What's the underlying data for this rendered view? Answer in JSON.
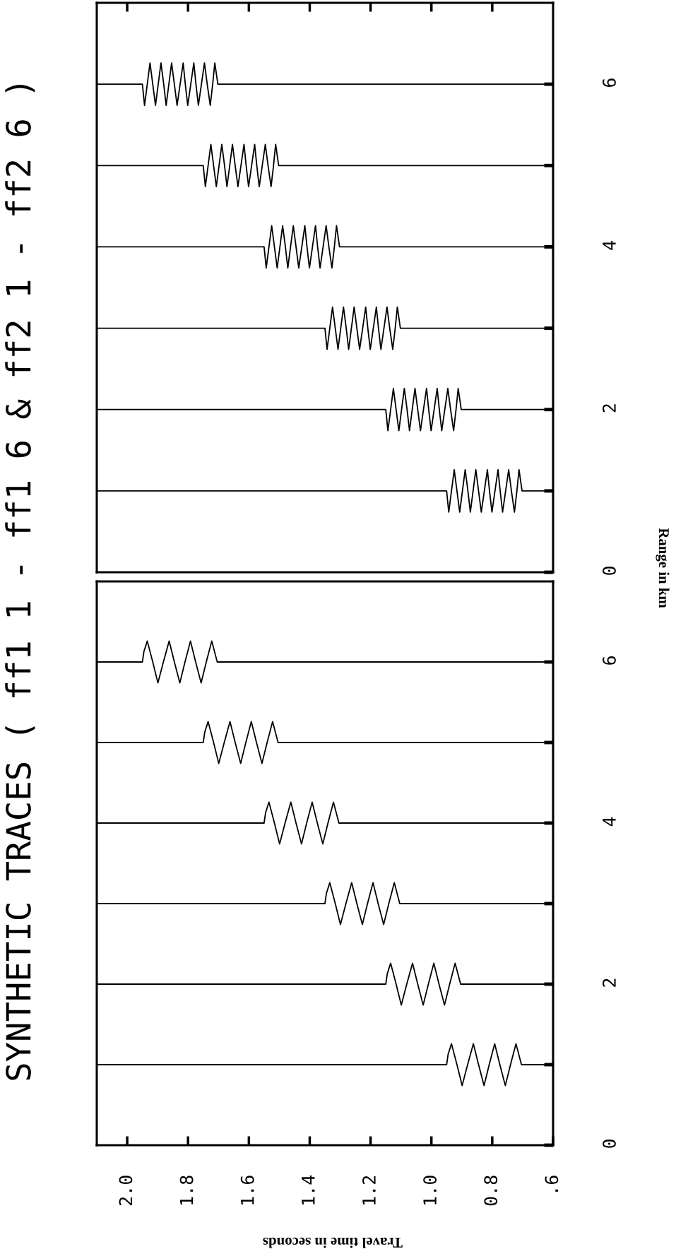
{
  "chart_data": [
    {
      "type": "line",
      "title": "SYNTHETIC TRACES ( ff1 1 - ff1 6 & ff2 1 - ff2 6 )",
      "xlabel": "Travel time in seconds",
      "ylabel": "Range in km",
      "grid": false,
      "legend": false,
      "marker": "none",
      "line_style": "solid",
      "xlim": [
        2.1,
        0.6
      ],
      "xticks": [
        {
          "value": 2.0,
          "label": "2.0"
        },
        1.8,
        1.6,
        1.4,
        1.2,
        {
          "value": 1.0,
          "label": "1.0"
        },
        0.8,
        {
          "value": 0.6,
          "label": ".6"
        }
      ],
      "ylim": [
        0,
        7
      ],
      "yticks": [
        0,
        {
          "value": 1,
          "label": null
        },
        2,
        {
          "value": 3,
          "label": null
        },
        4,
        {
          "value": 5,
          "label": null
        },
        6
      ],
      "series": [
        {
          "color": "#000000",
          "x": [
            2.1,
            1.95,
            1.945,
            1.934,
            1.916,
            1.899,
            1.881,
            1.862,
            1.845,
            1.827,
            1.81,
            1.792,
            1.775,
            1.757,
            1.74,
            1.722,
            1.704,
            0.6
          ],
          "values": [
            6,
            6,
            6.13,
            6.26,
            6,
            5.74,
            6,
            6.26,
            6,
            5.74,
            6,
            6.26,
            6,
            5.74,
            6,
            6.26,
            6,
            6
          ]
        },
        {
          "color": "#000000",
          "x": [
            2.1,
            1.75,
            1.745,
            1.734,
            1.716,
            1.699,
            1.681,
            1.662,
            1.645,
            1.627,
            1.61,
            1.592,
            1.575,
            1.557,
            1.54,
            1.522,
            1.504,
            0.6
          ],
          "values": [
            5,
            5,
            5.13,
            5.26,
            5,
            4.74,
            5,
            5.26,
            5,
            4.74,
            5,
            5.26,
            5,
            4.74,
            5,
            5.26,
            5,
            5
          ]
        },
        {
          "color": "#000000",
          "x": [
            2.1,
            1.55,
            1.545,
            1.534,
            1.516,
            1.499,
            1.481,
            1.462,
            1.445,
            1.427,
            1.41,
            1.392,
            1.375,
            1.357,
            1.34,
            1.322,
            1.304,
            0.6
          ],
          "values": [
            4,
            4,
            4.13,
            4.26,
            4,
            3.74,
            4,
            4.26,
            4,
            3.74,
            4,
            4.26,
            4,
            3.74,
            4,
            4.26,
            4,
            4
          ]
        },
        {
          "color": "#000000",
          "x": [
            2.1,
            1.35,
            1.345,
            1.334,
            1.316,
            1.299,
            1.281,
            1.262,
            1.245,
            1.227,
            1.21,
            1.192,
            1.175,
            1.157,
            1.14,
            1.122,
            1.104,
            0.6
          ],
          "values": [
            3,
            3,
            3.13,
            3.26,
            3,
            2.74,
            3,
            3.26,
            3,
            2.74,
            3,
            3.26,
            3,
            2.74,
            3,
            3.26,
            3,
            3
          ]
        },
        {
          "color": "#000000",
          "x": [
            2.1,
            1.15,
            1.145,
            1.134,
            1.116,
            1.099,
            1.081,
            1.062,
            1.045,
            1.027,
            1.01,
            0.992,
            0.975,
            0.957,
            0.94,
            0.922,
            0.904,
            0.6
          ],
          "values": [
            2,
            2,
            2.13,
            2.26,
            2,
            1.74,
            2,
            2.26,
            2,
            1.74,
            2,
            2.26,
            2,
            1.74,
            2,
            2.26,
            2,
            2
          ]
        },
        {
          "color": "#000000",
          "x": [
            2.1,
            0.95,
            0.945,
            0.934,
            0.916,
            0.899,
            0.881,
            0.862,
            0.845,
            0.827,
            0.81,
            0.792,
            0.775,
            0.757,
            0.74,
            0.722,
            0.704,
            0.6
          ],
          "values": [
            1,
            1,
            1.13,
            1.26,
            1,
            0.74,
            1,
            1.26,
            1,
            0.74,
            1,
            1.26,
            1,
            0.74,
            1,
            1.26,
            1,
            1
          ]
        }
      ]
    },
    {
      "type": "line",
      "tick_labels": "y",
      "grid": false,
      "legend": false,
      "marker": "none",
      "line_style": "solid",
      "xlim": [
        2.1,
        0.6
      ],
      "xticks": [
        2.0,
        1.8,
        1.6,
        1.4,
        1.2,
        1.0,
        0.8
      ],
      "ylim": [
        0,
        7
      ],
      "yticks": [
        0,
        {
          "value": 1,
          "label": null
        },
        2,
        {
          "value": 3,
          "label": null
        },
        4,
        {
          "value": 5,
          "label": null
        },
        6
      ],
      "series": [
        {
          "color": "#000000",
          "x": [
            2.1,
            1.95,
            1.943,
            1.934,
            1.925,
            1.916,
            1.907,
            1.898,
            1.889,
            1.88,
            1.872,
            1.863,
            1.854,
            1.845,
            1.836,
            1.826,
            1.816,
            1.809,
            1.801,
            1.791,
            1.781,
            1.774,
            1.766,
            1.756,
            1.746,
            1.737,
            1.727,
            1.719,
            1.712,
            1.702,
            0.6
          ],
          "values": [
            6,
            6,
            5.74,
            6,
            6.26,
            6,
            5.74,
            6,
            6.26,
            6,
            5.74,
            6,
            6.26,
            6,
            5.74,
            6,
            6.26,
            6,
            5.74,
            6,
            6.26,
            6,
            5.74,
            6,
            6.26,
            6,
            5.74,
            6,
            6.26,
            6,
            6
          ]
        },
        {
          "color": "#000000",
          "x": [
            2.1,
            1.75,
            1.743,
            1.734,
            1.725,
            1.716,
            1.707,
            1.698,
            1.689,
            1.68,
            1.672,
            1.663,
            1.654,
            1.645,
            1.636,
            1.626,
            1.616,
            1.609,
            1.601,
            1.591,
            1.581,
            1.574,
            1.566,
            1.556,
            1.546,
            1.537,
            1.527,
            1.519,
            1.512,
            1.502,
            0.6
          ],
          "values": [
            5,
            5,
            4.74,
            5,
            5.26,
            5,
            4.74,
            5,
            5.26,
            5,
            4.74,
            5,
            5.26,
            5,
            4.74,
            5,
            5.26,
            5,
            4.74,
            5,
            5.26,
            5,
            4.74,
            5,
            5.26,
            5,
            4.74,
            5,
            5.26,
            5,
            5
          ]
        },
        {
          "color": "#000000",
          "x": [
            2.1,
            1.55,
            1.543,
            1.534,
            1.525,
            1.516,
            1.507,
            1.498,
            1.489,
            1.48,
            1.472,
            1.463,
            1.454,
            1.445,
            1.436,
            1.426,
            1.416,
            1.409,
            1.401,
            1.391,
            1.381,
            1.374,
            1.366,
            1.356,
            1.346,
            1.337,
            1.327,
            1.319,
            1.312,
            1.302,
            0.6
          ],
          "values": [
            4,
            4,
            3.74,
            4,
            4.26,
            4,
            3.74,
            4,
            4.26,
            4,
            3.74,
            4,
            4.26,
            4,
            3.74,
            4,
            4.26,
            4,
            3.74,
            4,
            4.26,
            4,
            3.74,
            4,
            4.26,
            4,
            3.74,
            4,
            4.26,
            4,
            4
          ]
        },
        {
          "color": "#000000",
          "x": [
            2.1,
            1.35,
            1.343,
            1.334,
            1.325,
            1.316,
            1.307,
            1.298,
            1.289,
            1.28,
            1.272,
            1.263,
            1.254,
            1.245,
            1.236,
            1.226,
            1.216,
            1.209,
            1.201,
            1.191,
            1.181,
            1.174,
            1.166,
            1.156,
            1.146,
            1.137,
            1.127,
            1.119,
            1.112,
            1.102,
            0.6
          ],
          "values": [
            3,
            3,
            2.74,
            3,
            3.26,
            3,
            2.74,
            3,
            3.26,
            3,
            2.74,
            3,
            3.26,
            3,
            2.74,
            3,
            3.26,
            3,
            2.74,
            3,
            3.26,
            3,
            2.74,
            3,
            3.26,
            3,
            2.74,
            3,
            3.26,
            3,
            3
          ]
        },
        {
          "color": "#000000",
          "x": [
            2.1,
            1.15,
            1.143,
            1.134,
            1.125,
            1.116,
            1.107,
            1.098,
            1.089,
            1.08,
            1.072,
            1.063,
            1.054,
            1.045,
            1.036,
            1.026,
            1.016,
            1.009,
            1.001,
            0.991,
            0.981,
            0.974,
            0.966,
            0.956,
            0.946,
            0.937,
            0.927,
            0.919,
            0.912,
            0.902,
            0.6
          ],
          "values": [
            2,
            2,
            1.74,
            2,
            2.26,
            2,
            1.74,
            2,
            2.26,
            2,
            1.74,
            2,
            2.26,
            2,
            1.74,
            2,
            2.26,
            2,
            1.74,
            2,
            2.26,
            2,
            1.74,
            2,
            2.26,
            2,
            1.74,
            2,
            2.26,
            2,
            2
          ]
        },
        {
          "color": "#000000",
          "x": [
            2.1,
            0.95,
            0.943,
            0.934,
            0.925,
            0.916,
            0.907,
            0.898,
            0.889,
            0.88,
            0.872,
            0.863,
            0.854,
            0.845,
            0.836,
            0.826,
            0.816,
            0.809,
            0.801,
            0.791,
            0.781,
            0.774,
            0.766,
            0.756,
            0.746,
            0.737,
            0.727,
            0.719,
            0.712,
            0.702,
            0.6
          ],
          "values": [
            1,
            1,
            0.74,
            1,
            1.26,
            1,
            0.74,
            1,
            1.26,
            1,
            0.74,
            1,
            1.26,
            1,
            0.74,
            1,
            1.26,
            1,
            0.74,
            1,
            1.26,
            1,
            0.74,
            1,
            1.26,
            1,
            0.74,
            1,
            1.26,
            1,
            1
          ]
        }
      ]
    }
  ]
}
